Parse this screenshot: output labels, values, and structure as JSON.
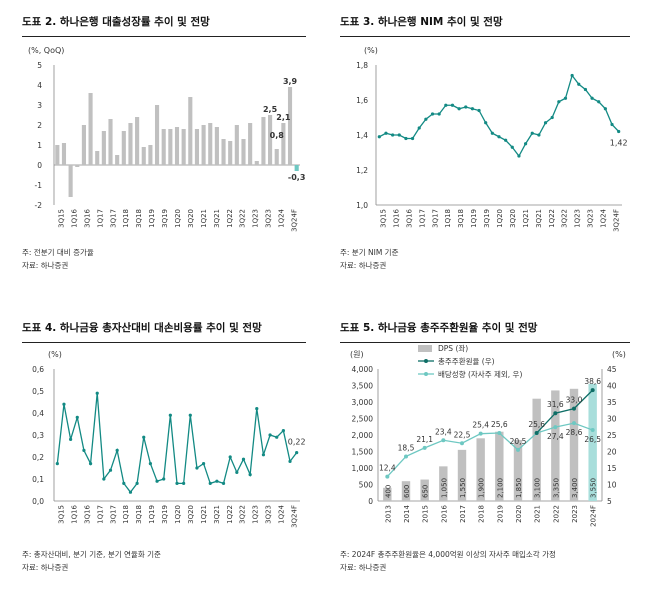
{
  "chart_data": [
    {
      "id": "c1",
      "type": "bar",
      "panel_title": "도표 2. 하나은행 대출성장률 추이 및 전망",
      "unit_label": "(%, QoQ)",
      "ylim": [
        -2,
        5
      ],
      "yticks": [
        "5",
        "4",
        "3",
        "2",
        "1",
        "0",
        "-1",
        "-2"
      ],
      "x_tick_labels": [
        "3Q15",
        "1Q16",
        "3Q16",
        "1Q17",
        "3Q17",
        "1Q18",
        "3Q18",
        "1Q19",
        "3Q19",
        "1Q20",
        "3Q20",
        "1Q21",
        "3Q21",
        "1Q22",
        "3Q22",
        "1Q23",
        "3Q23",
        "1Q24",
        "3Q24F"
      ],
      "values": [
        1.0,
        1.1,
        -1.6,
        -0.1,
        2.0,
        3.6,
        0.7,
        1.7,
        2.3,
        0.5,
        1.7,
        2.1,
        2.4,
        0.9,
        1.0,
        3.0,
        1.8,
        1.8,
        1.9,
        1.8,
        3.4,
        1.8,
        2.0,
        2.1,
        1.9,
        1.3,
        1.2,
        2.0,
        1.3,
        2.1,
        0.2,
        2.4,
        2.5,
        0.8,
        2.1,
        3.9,
        -0.3
      ],
      "highlight_index": 36,
      "data_labels": [
        {
          "index": 32,
          "text": "2,5"
        },
        {
          "index": 33,
          "text": "0,8"
        },
        {
          "index": 34,
          "text": "2,1"
        },
        {
          "index": 35,
          "text": "3,9"
        },
        {
          "index": 36,
          "text": "-0,3"
        }
      ],
      "colors": {
        "bar": "#c0c0c0",
        "highlight": "#6ec8c2"
      },
      "notes": [
        "주: 전분기 대비 증가율",
        "자료: 하나증권"
      ]
    },
    {
      "id": "c2",
      "type": "line",
      "panel_title": "도표 3. 하나은행 NIM 추이 및 전망",
      "unit_label": "(%)",
      "ylim": [
        1.0,
        1.8
      ],
      "yticks": [
        "1,8",
        "1,6",
        "1,4",
        "1,2",
        "1,0"
      ],
      "x_tick_labels": [
        "3Q15",
        "1Q16",
        "3Q16",
        "1Q17",
        "3Q17",
        "1Q18",
        "3Q18",
        "1Q19",
        "3Q19",
        "1Q20",
        "3Q20",
        "1Q21",
        "3Q21",
        "1Q22",
        "3Q22",
        "1Q23",
        "3Q23",
        "1Q24",
        "3Q24F"
      ],
      "values": [
        1.39,
        1.41,
        1.4,
        1.4,
        1.38,
        1.38,
        1.44,
        1.49,
        1.52,
        1.52,
        1.57,
        1.57,
        1.55,
        1.56,
        1.55,
        1.54,
        1.47,
        1.41,
        1.39,
        1.37,
        1.33,
        1.28,
        1.35,
        1.41,
        1.4,
        1.47,
        1.5,
        1.59,
        1.61,
        1.74,
        1.69,
        1.66,
        1.61,
        1.59,
        1.55,
        1.46,
        1.42
      ],
      "data_labels": [
        {
          "index": 36,
          "text": "1,42"
        }
      ],
      "colors": {
        "line": "#138a84"
      },
      "notes": [
        "주: 분기 NIM 기준",
        "자료: 하나증권"
      ]
    },
    {
      "id": "c3",
      "type": "line",
      "panel_title": "도표 4. 하나금융 총자산대비 대손비용률 추이 및 전망",
      "unit_label": "(%)",
      "ylim": [
        0,
        0.6
      ],
      "yticks": [
        "0,6",
        "0,5",
        "0,4",
        "0,3",
        "0,2",
        "0,1",
        "0,0"
      ],
      "x_tick_labels": [
        "3Q15",
        "1Q16",
        "3Q16",
        "1Q17",
        "3Q17",
        "1Q18",
        "3Q18",
        "1Q19",
        "3Q19",
        "1Q20",
        "3Q20",
        "1Q21",
        "3Q21",
        "1Q22",
        "3Q22",
        "1Q23",
        "3Q23",
        "1Q24",
        "3Q24F"
      ],
      "values": [
        0.17,
        0.44,
        0.28,
        0.38,
        0.23,
        0.17,
        0.49,
        0.1,
        0.14,
        0.23,
        0.08,
        0.04,
        0.08,
        0.29,
        0.17,
        0.09,
        0.1,
        0.39,
        0.08,
        0.08,
        0.39,
        0.15,
        0.17,
        0.08,
        0.09,
        0.08,
        0.2,
        0.13,
        0.19,
        0.12,
        0.42,
        0.21,
        0.3,
        0.29,
        0.32,
        0.18,
        0.22
      ],
      "data_labels": [
        {
          "index": 36,
          "text": "0,22"
        }
      ],
      "colors": {
        "line": "#138a84"
      },
      "notes": [
        "주: 총자산대비, 분기 기준, 분기 연율화 기준",
        "자료: 하나증권"
      ]
    },
    {
      "id": "c4",
      "type": "bar",
      "panel_title": "도표 5. 하나금융 총주주환원율 추이 및 전망",
      "left_unit": "(원)",
      "right_unit": "(%)",
      "ylim_left": [
        0,
        4000
      ],
      "ylim_right": [
        5,
        45
      ],
      "yticks_left": [
        "4,000",
        "3,500",
        "3,000",
        "2,500",
        "2,000",
        "1,500",
        "1,000",
        "500",
        "0"
      ],
      "yticks_right": [
        "45",
        "40",
        "35",
        "30",
        "25",
        "20",
        "15",
        "10",
        "5"
      ],
      "categories": [
        "2013",
        "2014",
        "2015",
        "2016",
        "2017",
        "2018",
        "2019",
        "2020",
        "2021",
        "2022",
        "2023",
        "2024F"
      ],
      "series": [
        {
          "name": "DPS (좌)",
          "type": "bar",
          "values": [
            400,
            600,
            650,
            1050,
            1550,
            1900,
            2100,
            1850,
            3100,
            3350,
            3400,
            3550
          ],
          "labels": [
            "400",
            "600",
            "650",
            "1,050",
            "1,550",
            "1,900",
            "2,100",
            "1,850",
            "3,100",
            "3,350",
            "3,400",
            "3,550"
          ]
        },
        {
          "name": "총주주환원율 (우)",
          "type": "line",
          "values": [
            null,
            null,
            null,
            null,
            null,
            null,
            null,
            null,
            25.6,
            31.6,
            33.0,
            38.6
          ],
          "labels": [
            "",
            "",
            "",
            "",
            "",
            "",
            "",
            "",
            "25,6",
            "31,6",
            "33,0",
            "38,6"
          ]
        },
        {
          "name": "배당성향 (자사주 제외, 우)",
          "type": "line",
          "values": [
            12.4,
            18.5,
            21.1,
            23.4,
            22.5,
            25.4,
            25.6,
            20.5,
            25.6,
            27.4,
            28.6,
            26.5
          ],
          "labels": [
            "12,4",
            "18,5",
            "21,1",
            "23,4",
            "22,5",
            "25,4",
            "25,6",
            "20,5",
            "",
            "27,4",
            "28,6",
            "26,5"
          ]
        }
      ],
      "colors": {
        "bar": "#c0c0c0",
        "bar_highlight": "#a8dedb",
        "total_line": "#0e6e66",
        "payout_line": "#6ec8c2"
      },
      "notes": [
        "주: 2024F 총주주환원율은 4,000억원 이상의 자사주 매입소각 가정",
        "자료: 하나증권"
      ]
    }
  ]
}
